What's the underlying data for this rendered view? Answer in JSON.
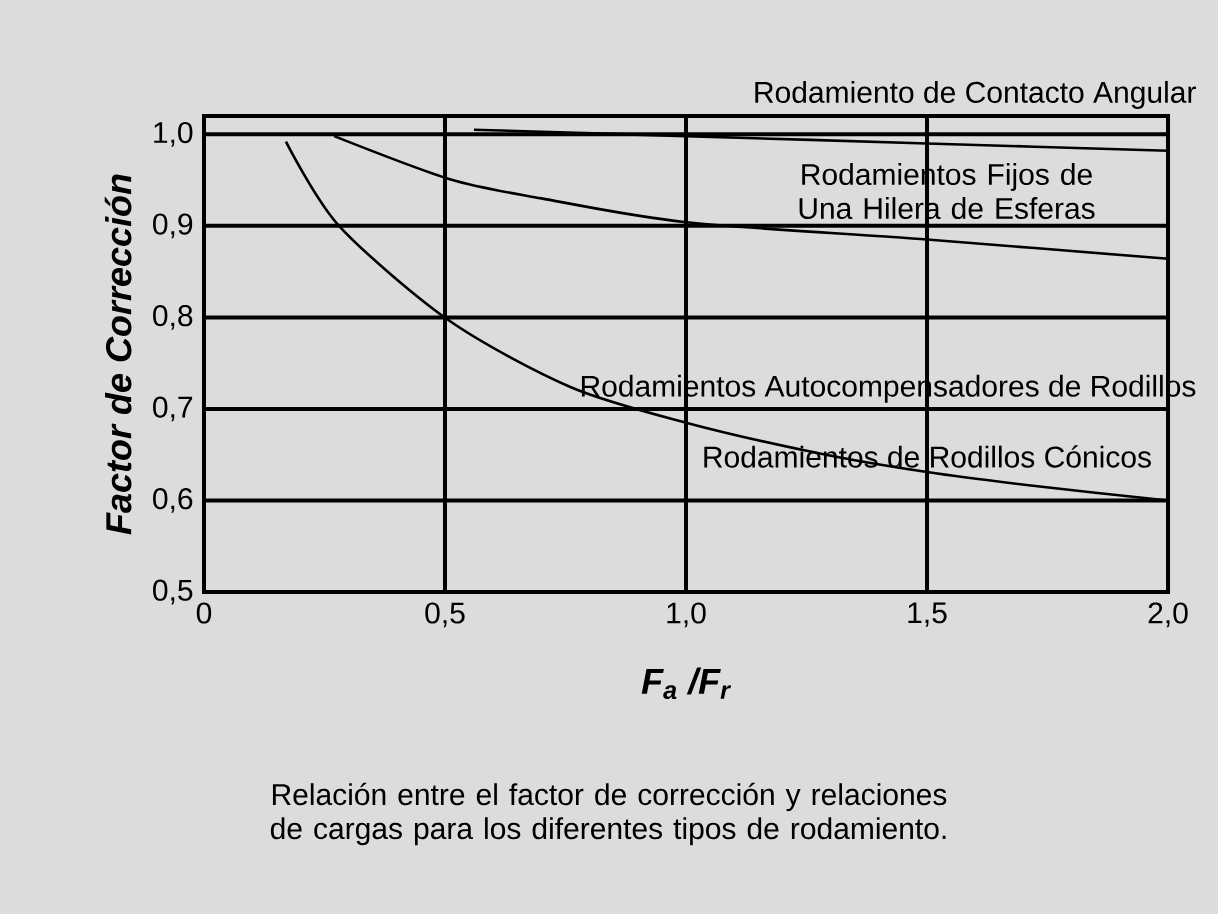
{
  "chart_data": {
    "type": "line",
    "xlabel": "F$_{a}$ /F$_{r}$",
    "ylabel": "Factor de Corrección",
    "xlim": [
      0,
      2.0
    ],
    "ylim": [
      0.5,
      1.02
    ],
    "xticks": [
      0,
      {
        "value": 0.5,
        "label": "0,5"
      },
      {
        "value": 1.0,
        "label": "1,0"
      },
      {
        "value": 1.5,
        "label": "1,5"
      },
      {
        "value": 2.0,
        "label": "2,0"
      }
    ],
    "yticks": [
      {
        "value": 0.5,
        "label": "0,5"
      },
      {
        "value": 0.6,
        "label": "0,6"
      },
      {
        "value": 0.7,
        "label": "0,7"
      },
      {
        "value": 0.8,
        "label": "0,8"
      },
      {
        "value": 0.9,
        "label": "0,9"
      },
      {
        "value": 1.0,
        "label": "1,0"
      }
    ],
    "grid": true,
    "series": [
      {
        "name": "Rodamiento de Contacto Angular",
        "color": "#000000",
        "x": [
          0.56,
          1.0,
          1.5,
          2.0
        ],
        "values": [
          1.005,
          0.998,
          0.99,
          0.982
        ]
      },
      {
        "name": "Rodamientos Fijos de Una Hilera de Esferas",
        "color": "#000000",
        "x": [
          0.27,
          0.51,
          0.7,
          1.0,
          1.5,
          2.0
        ],
        "values": [
          0.998,
          0.951,
          0.93,
          0.904,
          0.885,
          0.864
        ]
      },
      {
        "name": "Rodamientos Autocompensadores de Rodillos",
        "color": "#000000",
        "x": [
          0.17,
          0.28,
          0.51,
          0.76,
          1.0,
          1.28,
          1.5,
          1.72,
          2.0
        ],
        "values": [
          0.992,
          0.9,
          0.796,
          0.724,
          0.685,
          0.651,
          0.631,
          0.616,
          0.6
        ]
      }
    ],
    "annotations": [
      {
        "text": "Rodamientos de Rodillos Cónicos",
        "x": 1.5,
        "y": 0.631
      },
      "Relación entre el factor de corrección y relaciones de cargas para los diferentes tipos de rodamiento."
    ]
  }
}
